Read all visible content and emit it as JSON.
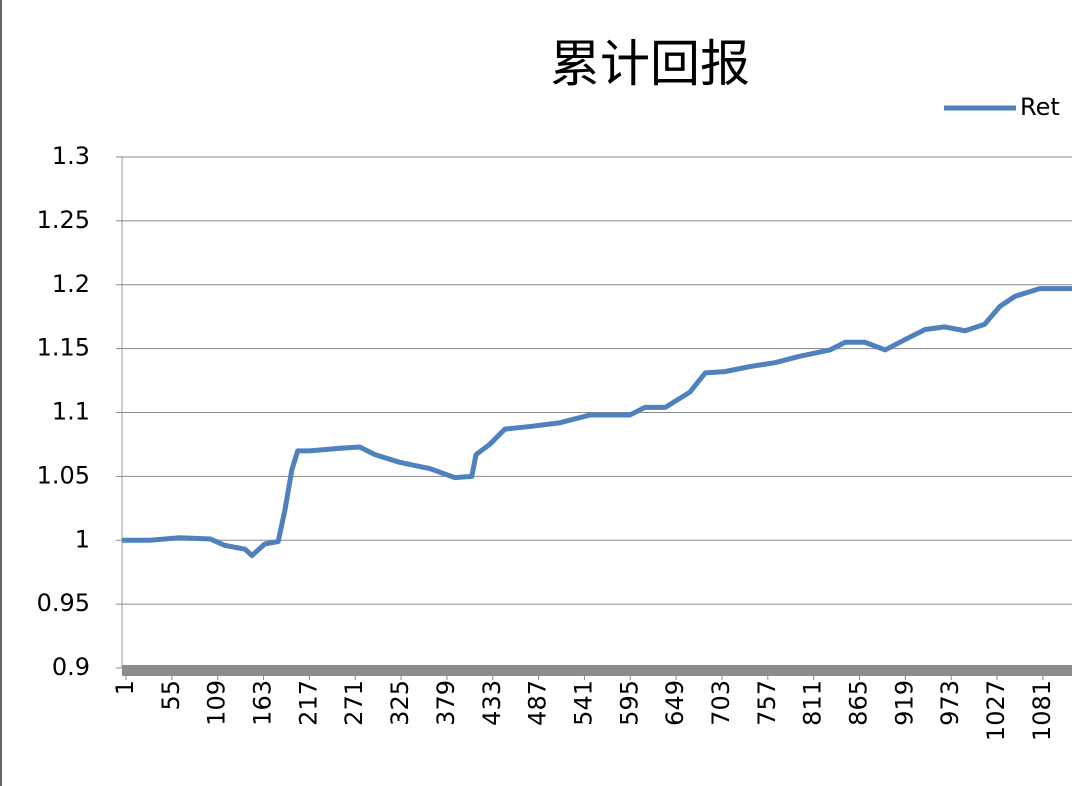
{
  "chart_data": {
    "type": "line",
    "title": "累计回报",
    "x": [
      1,
      34,
      69,
      105,
      122,
      146,
      154,
      169,
      185,
      193,
      201,
      208,
      222,
      258,
      281,
      299,
      328,
      364,
      393,
      413,
      418,
      434,
      452,
      481,
      517,
      552,
      599,
      617,
      641,
      670,
      688,
      711,
      741,
      770,
      799,
      835,
      853,
      876,
      900,
      923,
      947,
      970,
      994,
      1017,
      1035,
      1053,
      1082,
      1120
    ],
    "series": [
      {
        "name": "Ret",
        "color": "#4f81bd",
        "values": [
          1.0,
          1.0,
          1.002,
          1.001,
          0.996,
          0.993,
          0.988,
          0.997,
          0.999,
          1.024,
          1.055,
          1.07,
          1.07,
          1.072,
          1.073,
          1.067,
          1.061,
          1.056,
          1.049,
          1.05,
          1.067,
          1.075,
          1.087,
          1.089,
          1.092,
          1.098,
          1.098,
          1.104,
          1.104,
          1.116,
          1.131,
          1.132,
          1.136,
          1.139,
          1.144,
          1.149,
          1.155,
          1.155,
          1.149,
          1.157,
          1.165,
          1.167,
          1.164,
          1.169,
          1.183,
          1.191,
          1.197,
          1.197
        ]
      }
    ],
    "xlim": [
      1,
      1120
    ],
    "xticks": [
      1,
      55,
      109,
      163,
      217,
      271,
      325,
      379,
      433,
      487,
      541,
      595,
      649,
      703,
      757,
      811,
      865,
      919,
      973,
      1027,
      1081
    ],
    "ylim": [
      0.9,
      1.3
    ],
    "yticks": [
      0.9,
      0.95,
      1,
      1.05,
      1.1,
      1.15,
      1.2,
      1.25,
      1.3
    ],
    "grid": true,
    "legend": "top-right"
  }
}
